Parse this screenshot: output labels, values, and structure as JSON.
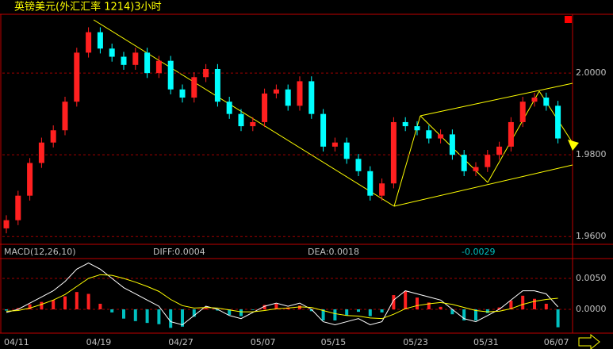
{
  "chart_data": [
    {
      "type": "candlestick",
      "title": "英镑美元(外汇汇率 1214)3小时",
      "categories": [
        "04/11",
        null,
        null,
        null,
        null,
        null,
        null,
        "04/19",
        null,
        null,
        null,
        null,
        null,
        null,
        "04/27",
        null,
        null,
        null,
        null,
        null,
        null,
        "05/07",
        null,
        null,
        null,
        null,
        null,
        "05/15",
        null,
        null,
        null,
        null,
        null,
        null,
        "05/23",
        null,
        null,
        null,
        null,
        null,
        "05/31",
        null,
        null,
        null,
        null,
        null,
        "06/07",
        null
      ],
      "open": [
        1.962,
        1.964,
        1.97,
        1.978,
        1.983,
        1.986,
        1.993,
        2.005,
        2.01,
        2.006,
        2.004,
        2.002,
        2.005,
        2.0,
        2.003,
        1.996,
        1.994,
        1.999,
        2.001,
        1.993,
        1.99,
        1.987,
        1.988,
        1.995,
        1.996,
        1.992,
        1.998,
        1.99,
        1.982,
        1.983,
        1.979,
        1.976,
        1.97,
        1.973,
        1.988,
        1.987,
        1.986,
        1.984,
        1.985,
        1.98,
        1.976,
        1.977,
        1.98,
        1.982,
        1.988,
        1.993,
        1.994,
        1.992
      ],
      "close": [
        1.964,
        1.97,
        1.978,
        1.983,
        1.986,
        1.993,
        2.005,
        2.01,
        2.006,
        2.004,
        2.002,
        2.005,
        2.0,
        2.003,
        1.996,
        1.994,
        1.999,
        2.001,
        1.993,
        1.99,
        1.987,
        1.988,
        1.995,
        1.996,
        1.992,
        1.998,
        1.99,
        1.982,
        1.983,
        1.979,
        1.976,
        1.97,
        1.973,
        1.988,
        1.987,
        1.986,
        1.984,
        1.985,
        1.98,
        1.976,
        1.977,
        1.98,
        1.982,
        1.988,
        1.993,
        1.994,
        1.992,
        1.984
      ],
      "high": [
        1.9652,
        1.9712,
        1.9792,
        1.9842,
        1.9872,
        1.9942,
        2.0062,
        2.0112,
        2.0112,
        2.0072,
        2.0052,
        2.0062,
        2.0062,
        2.0042,
        2.0042,
        1.9972,
        2.0002,
        2.0022,
        2.0022,
        1.9942,
        1.9912,
        1.9892,
        1.9962,
        1.9972,
        1.9972,
        1.9992,
        1.9992,
        1.9912,
        1.9842,
        1.9842,
        1.9802,
        1.9772,
        1.9742,
        1.9892,
        1.9892,
        1.9882,
        1.9872,
        1.9862,
        1.9862,
        1.9812,
        1.9782,
        1.9812,
        1.9832,
        1.9892,
        1.9942,
        1.9952,
        1.9952,
        1.9932
      ],
      "low": [
        1.9608,
        1.9628,
        1.9688,
        1.9768,
        1.9818,
        1.9848,
        1.9918,
        2.0038,
        2.0048,
        2.0028,
        2.0008,
        2.0008,
        1.9988,
        1.9988,
        1.9948,
        1.9928,
        1.9928,
        1.9978,
        1.9918,
        1.9888,
        1.9858,
        1.9858,
        1.9868,
        1.9938,
        1.9908,
        1.9908,
        1.9888,
        1.9808,
        1.9808,
        1.9778,
        1.9748,
        1.9688,
        1.9688,
        1.9718,
        1.9858,
        1.9848,
        1.9828,
        1.9828,
        1.9788,
        1.9748,
        1.9748,
        1.9758,
        1.9788,
        1.9808,
        1.9868,
        1.9918,
        1.9908,
        1.9828
      ],
      "up_color": "#ff2020",
      "down_color": "#00ffff",
      "ylim": [
        1.9581,
        2.014
      ],
      "yticks": [
        {
          "value": 1.96,
          "label": "1.9600"
        },
        {
          "value": 1.98,
          "label": "1.9800"
        },
        {
          "value": 2.0,
          "label": "2.0000"
        }
      ],
      "grid": true
    },
    {
      "type": "macd",
      "title": "MACD(12,26,10)",
      "diff_label": "DIFF:0.0004",
      "dea_label": "DEA:0.0018",
      "macd_label": "-0.0029",
      "series": [
        {
          "color": "#ffffff",
          "values": [
            -0.0005,
            0.0,
            0.001,
            0.002,
            0.003,
            0.0045,
            0.0065,
            0.0075,
            0.0065,
            0.005,
            0.0035,
            0.0025,
            0.0015,
            0.0005,
            -0.002,
            -0.0025,
            -0.001,
            0.0005,
            0.0,
            -0.001,
            -0.0015,
            -0.0005,
            0.0005,
            0.001,
            0.0005,
            0.001,
            0.0,
            -0.002,
            -0.0025,
            -0.002,
            -0.0015,
            -0.0025,
            -0.002,
            0.0015,
            0.003,
            0.0025,
            0.002,
            0.0015,
            0.0,
            -0.0015,
            -0.002,
            -0.001,
            0.0,
            0.0015,
            0.003,
            0.003,
            0.0025,
            0.0004
          ]
        },
        {
          "color": "#ffff00",
          "values": [
            -0.0003,
            -0.0002,
            0.0002,
            0.0008,
            0.0015,
            0.0024,
            0.0037,
            0.005,
            0.0056,
            0.0055,
            0.005,
            0.0044,
            0.0037,
            0.0029,
            0.0016,
            0.0006,
            0.0002,
            0.0003,
            0.0002,
            -0.0001,
            -0.0004,
            -0.0004,
            -0.0002,
            0.0001,
            0.0002,
            0.0004,
            0.0003,
            -0.0002,
            -0.0007,
            -0.001,
            -0.0011,
            -0.0014,
            -0.0015,
            -0.0008,
            0.0001,
            0.0006,
            0.0009,
            0.0011,
            0.0008,
            0.0003,
            -0.0002,
            -0.0004,
            -0.0003,
            0.0001,
            0.0008,
            0.0013,
            0.0016,
            0.0018
          ]
        }
      ],
      "histogram": [
        -0.0002,
        0.0002,
        0.0008,
        0.0012,
        0.0015,
        0.0021,
        0.0028,
        0.0025,
        0.0009,
        -0.0005,
        -0.0015,
        -0.0019,
        -0.0022,
        -0.0024,
        -0.003,
        -0.0028,
        -0.0012,
        0.0002,
        -0.0002,
        -0.0009,
        -0.0011,
        -0.0001,
        0.0007,
        0.0009,
        0.0003,
        0.0006,
        -0.0003,
        -0.0018,
        -0.0018,
        -0.001,
        -0.0004,
        -0.0011,
        -0.0005,
        0.0023,
        0.0029,
        0.0019,
        0.0011,
        0.0004,
        -0.0008,
        -0.0018,
        -0.0018,
        -0.0006,
        0.0003,
        0.0014,
        0.0022,
        0.0017,
        0.0009,
        -0.0029
      ],
      "ylim": [
        -0.00385,
        0.00795
      ],
      "yticks": [
        {
          "value": 0,
          "label": "0.0000"
        },
        {
          "value": 0.005,
          "label": "0.0050"
        }
      ],
      "grid": true
    }
  ]
}
